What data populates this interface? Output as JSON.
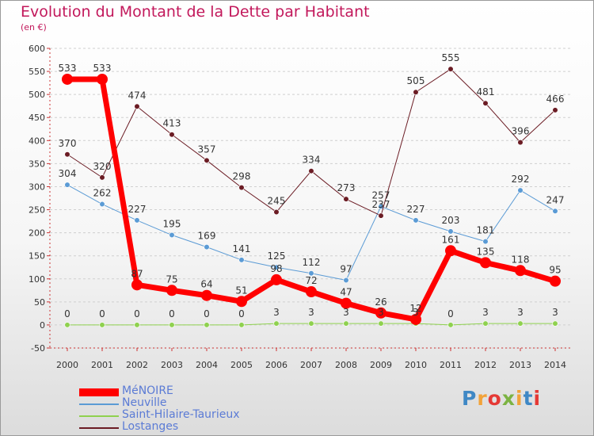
{
  "title": "Evolution du Montant de la Dette par Habitant",
  "subtitle": "(en €)",
  "logo": {
    "text": "Proxiti",
    "colors": [
      "#3f88c5",
      "#f2a33a",
      "#7cb342",
      "#e53935"
    ]
  },
  "chart_data": {
    "type": "line",
    "categories": [
      "2000",
      "2001",
      "2002",
      "2003",
      "2004",
      "2005",
      "2006",
      "2007",
      "2008",
      "2009",
      "2010",
      "2011",
      "2012",
      "2013",
      "2014"
    ],
    "ylim": [
      -50,
      600
    ],
    "yticks": [
      -50,
      0,
      50,
      100,
      150,
      200,
      250,
      300,
      350,
      400,
      450,
      500,
      550,
      600
    ],
    "grid": "horizontal dashed",
    "legend_position": "bottom-left",
    "series": [
      {
        "name": "MéNOIRE",
        "color": "#ff0000",
        "width": 7,
        "values": [
          533,
          533,
          87,
          75,
          64,
          51,
          98,
          72,
          47,
          26,
          12,
          161,
          135,
          118,
          95
        ]
      },
      {
        "name": "Neuville",
        "color": "#5b9bd5",
        "width": 1,
        "values": [
          304,
          262,
          227,
          195,
          169,
          141,
          125,
          112,
          97,
          257,
          227,
          203,
          181,
          292,
          247
        ]
      },
      {
        "name": "Saint-Hilaire-Taurieux",
        "color": "#8fd14f",
        "width": 1,
        "values": [
          0,
          0,
          0,
          0,
          0,
          0,
          3,
          3,
          3,
          3,
          3,
          0,
          3,
          3,
          3
        ]
      },
      {
        "name": "Lostanges",
        "color": "#6b1c24",
        "width": 1,
        "values": [
          370,
          320,
          474,
          413,
          357,
          298,
          245,
          334,
          273,
          237,
          505,
          555,
          481,
          396,
          466
        ]
      }
    ]
  }
}
